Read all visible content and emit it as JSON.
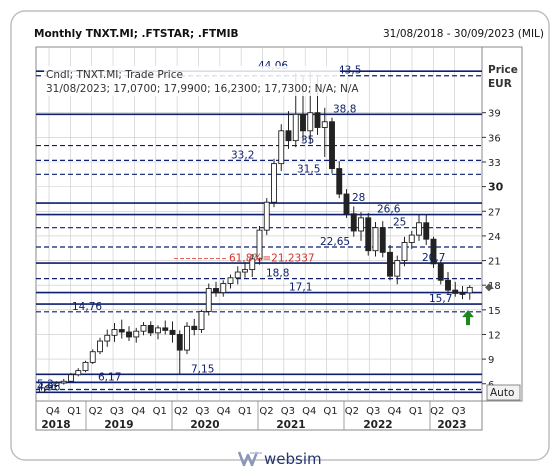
{
  "header": {
    "title": "Monthly TNXT.MI; .FTSTAR; .FTMIB",
    "date_range": "31/08/2018 - 30/09/2023 (MIL)"
  },
  "legend": {
    "line1": "Cndl; TNXT.MI; Trade Price",
    "line2": "31/08/2023; 17,0700; 17,9900; 16,2300; 17,7300; N/A; N/A"
  },
  "axis": {
    "y_title": "Price",
    "y_unit": "EUR",
    "auto_button": "Auto"
  },
  "footer": {
    "brand": "websim"
  },
  "colors": {
    "navy_line": "#0d1f6e",
    "dashed_line": "#0d1f6e",
    "fib_label": "#d8322b",
    "arrow": "#1a8a1a",
    "candle": "#222222",
    "grid": "#c8c8c8"
  },
  "chart_data": {
    "type": "candlestick",
    "ylim": [
      3.9,
      47
    ],
    "y_ticks": [
      6,
      9,
      12,
      15,
      18,
      21,
      24,
      27,
      30,
      33,
      36,
      39
    ],
    "y_tick_labels": [
      "6",
      "9",
      "12",
      "15",
      "18",
      "21",
      "24",
      "27",
      "30",
      "33",
      "36",
      "39"
    ],
    "bold_tick": 30,
    "x_quarters": [
      "Q4",
      "Q1",
      "Q2",
      "Q3",
      "Q4",
      "Q1",
      "Q2",
      "Q3",
      "Q4",
      "Q1",
      "Q2",
      "Q3",
      "Q4",
      "Q1",
      "Q2",
      "Q3",
      "Q4",
      "Q1",
      "Q2",
      "Q3"
    ],
    "x_years": [
      "2018",
      "2019",
      "2020",
      "2021",
      "2022",
      "2023"
    ],
    "candles": [
      [
        5.0,
        5.6,
        4.9,
        5.5
      ],
      [
        5.5,
        6.0,
        5.3,
        5.8
      ],
      [
        5.8,
        6.3,
        5.6,
        6.1
      ],
      [
        6.1,
        6.6,
        5.9,
        6.3
      ],
      [
        6.3,
        7.3,
        6.2,
        7.1
      ],
      [
        7.1,
        7.9,
        6.9,
        7.6
      ],
      [
        7.6,
        8.8,
        7.4,
        8.6
      ],
      [
        8.6,
        10.2,
        8.4,
        9.9
      ],
      [
        9.9,
        11.6,
        9.6,
        11.2
      ],
      [
        11.2,
        12.6,
        10.5,
        11.9
      ],
      [
        11.9,
        13.4,
        11.1,
        12.6
      ],
      [
        12.6,
        13.8,
        11.5,
        12.3
      ],
      [
        12.3,
        13.0,
        11.2,
        11.7
      ],
      [
        11.7,
        12.8,
        11.0,
        12.4
      ],
      [
        12.4,
        13.5,
        11.9,
        13.1
      ],
      [
        13.1,
        13.6,
        11.8,
        12.2
      ],
      [
        12.2,
        13.1,
        11.4,
        12.8
      ],
      [
        12.8,
        13.7,
        12.0,
        12.5
      ],
      [
        12.5,
        13.6,
        11.0,
        12.0
      ],
      [
        12.0,
        12.5,
        7.2,
        10.1
      ],
      [
        10.1,
        13.5,
        9.6,
        13.0
      ],
      [
        13.0,
        13.9,
        11.9,
        12.6
      ],
      [
        12.6,
        15.0,
        12.2,
        14.8
      ],
      [
        14.8,
        18.2,
        14.3,
        17.6
      ],
      [
        17.6,
        18.4,
        16.6,
        17.1
      ],
      [
        17.1,
        18.6,
        16.6,
        18.2
      ],
      [
        18.2,
        19.3,
        17.6,
        18.9
      ],
      [
        18.9,
        20.3,
        18.1,
        19.6
      ],
      [
        19.6,
        20.8,
        18.9,
        19.9
      ],
      [
        19.9,
        21.8,
        19.0,
        21.2
      ],
      [
        21.2,
        25.2,
        20.5,
        24.7
      ],
      [
        24.7,
        28.6,
        24.1,
        28.1
      ],
      [
        28.1,
        33.4,
        27.5,
        32.8
      ],
      [
        32.8,
        37.6,
        31.9,
        36.8
      ],
      [
        36.8,
        39.2,
        34.6,
        35.6
      ],
      [
        35.6,
        43.8,
        34.8,
        38.8
      ],
      [
        38.8,
        43.5,
        35.5,
        36.8
      ],
      [
        36.8,
        44.1,
        35.2,
        39.0
      ],
      [
        39.0,
        43.5,
        36.3,
        37.2
      ],
      [
        37.2,
        39.6,
        33.6,
        37.9
      ],
      [
        37.9,
        38.4,
        31.6,
        32.2
      ],
      [
        32.2,
        33.1,
        28.6,
        29.1
      ],
      [
        29.1,
        29.7,
        26.2,
        26.7
      ],
      [
        26.7,
        27.6,
        23.9,
        24.6
      ],
      [
        24.6,
        26.9,
        23.4,
        26.2
      ],
      [
        26.2,
        26.8,
        21.6,
        22.2
      ],
      [
        22.2,
        25.7,
        21.5,
        25.0
      ],
      [
        25.0,
        25.8,
        21.4,
        22.0
      ],
      [
        22.0,
        22.9,
        18.6,
        19.1
      ],
      [
        19.1,
        21.6,
        18.1,
        21.0
      ],
      [
        21.0,
        23.9,
        20.3,
        23.2
      ],
      [
        23.2,
        24.6,
        22.4,
        24.1
      ],
      [
        24.1,
        26.6,
        23.4,
        25.6
      ],
      [
        25.6,
        26.6,
        22.9,
        23.6
      ],
      [
        23.6,
        23.9,
        20.1,
        20.6
      ],
      [
        20.6,
        21.1,
        18.1,
        18.6
      ],
      [
        18.6,
        19.6,
        16.9,
        17.4
      ],
      [
        17.4,
        18.4,
        16.6,
        17.0
      ],
      [
        17.0,
        17.9,
        16.3,
        16.9
      ],
      [
        17.07,
        17.99,
        16.23,
        17.73
      ]
    ],
    "solid_lines": [
      {
        "value": 44.06,
        "label": "44,06"
      },
      {
        "value": 38.8,
        "label": "38,8"
      },
      {
        "value": 28.0,
        "label": "28"
      },
      {
        "value": 26.6,
        "label": "26,6"
      },
      {
        "value": 20.7,
        "label": "20,7"
      },
      {
        "value": 17.1,
        "label": "17,1"
      },
      {
        "value": 15.7,
        "label": "15,7"
      },
      {
        "value": 7.15,
        "label": "7,15"
      },
      {
        "value": 6.17,
        "label": "6,17"
      },
      {
        "value": 4.96,
        "label": "4,96"
      }
    ],
    "dashed_lines": [
      {
        "value": 43.5,
        "label": "43,5"
      },
      {
        "value": 35.0,
        "label": "35"
      },
      {
        "value": 33.2,
        "label": "33,2"
      },
      {
        "value": 31.5,
        "label": "31,5"
      },
      {
        "value": 25.0,
        "label": "25"
      },
      {
        "value": 22.65,
        "label": "22,65"
      },
      {
        "value": 18.8,
        "label": "18,8"
      },
      {
        "value": 14.76,
        "label": "14,76"
      },
      {
        "value": 5.3,
        "label": "5,3"
      }
    ],
    "fib_annotation": {
      "value": 21.2337,
      "label": "61,8%=21,2337"
    },
    "last_price": 17.73
  }
}
